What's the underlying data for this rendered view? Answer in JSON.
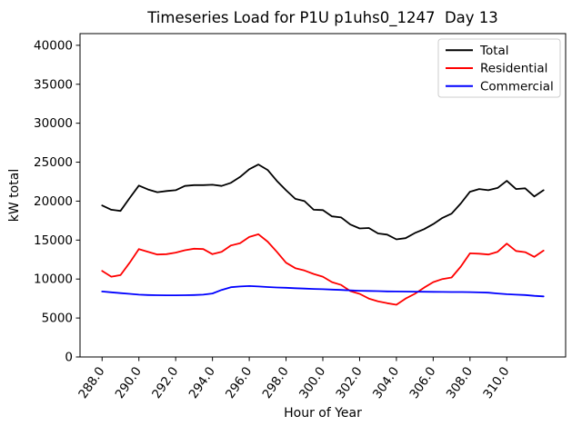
{
  "chart_data": {
    "type": "line",
    "title": "Timeseries Load for P1U p1uhs0_1247  Day 13",
    "xlabel": "Hour of Year",
    "ylabel": "kW total",
    "xlim": [
      286.8,
      313.2
    ],
    "ylim": [
      0,
      41500
    ],
    "grid": false,
    "x_tick_rotation_deg": -55,
    "x_ticks": [
      {
        "value": 288,
        "label": "288.0"
      },
      {
        "value": 290,
        "label": "290.0"
      },
      {
        "value": 292,
        "label": "292.0"
      },
      {
        "value": 294,
        "label": "294.0"
      },
      {
        "value": 296,
        "label": "296.0"
      },
      {
        "value": 298,
        "label": "298.0"
      },
      {
        "value": 300,
        "label": "300.0"
      },
      {
        "value": 302,
        "label": "302.0"
      },
      {
        "value": 304,
        "label": "304.0"
      },
      {
        "value": 306,
        "label": "306.0"
      },
      {
        "value": 308,
        "label": "308.0"
      },
      {
        "value": 310,
        "label": "310.0"
      }
    ],
    "y_ticks": [
      {
        "value": 0,
        "label": "0"
      },
      {
        "value": 5000,
        "label": "5000"
      },
      {
        "value": 10000,
        "label": "10000"
      },
      {
        "value": 15000,
        "label": "15000"
      },
      {
        "value": 20000,
        "label": "20000"
      },
      {
        "value": 25000,
        "label": "25000"
      },
      {
        "value": 30000,
        "label": "30000"
      },
      {
        "value": 35000,
        "label": "35000"
      },
      {
        "value": 40000,
        "label": "40000"
      }
    ],
    "x": [
      288,
      288.5,
      289,
      289.5,
      290,
      290.5,
      291,
      291.5,
      292,
      292.5,
      293,
      293.5,
      294,
      294.5,
      295,
      295.5,
      296,
      296.5,
      297,
      297.5,
      298,
      298.5,
      299,
      299.5,
      300,
      300.5,
      301,
      301.5,
      302,
      302.5,
      303,
      303.5,
      304,
      304.5,
      305,
      305.5,
      306,
      306.5,
      307,
      307.5,
      308,
      308.5,
      309,
      309.5,
      310,
      310.5,
      311,
      311.5,
      312
    ],
    "series": [
      {
        "name": "Total",
        "color": "#000000",
        "values": [
          19450,
          18900,
          18750,
          20400,
          22000,
          21500,
          21150,
          21300,
          21400,
          21950,
          22050,
          22050,
          22100,
          21950,
          22350,
          23100,
          24100,
          24700,
          24000,
          22600,
          21400,
          20300,
          20000,
          18900,
          18850,
          18050,
          17900,
          17000,
          16500,
          16550,
          15850,
          15700,
          15100,
          15250,
          15900,
          16400,
          17050,
          17850,
          18400,
          19700,
          21200,
          21550,
          21400,
          21700,
          22600,
          21550,
          21650,
          20600,
          21400
        ]
      },
      {
        "name": "Residential",
        "color": "#ff0000",
        "values": [
          11050,
          10300,
          10500,
          12100,
          13850,
          13500,
          13150,
          13200,
          13400,
          13700,
          13900,
          13850,
          13200,
          13500,
          14300,
          14600,
          15400,
          15750,
          14800,
          13500,
          12100,
          11400,
          11100,
          10650,
          10300,
          9600,
          9250,
          8450,
          8100,
          7500,
          7150,
          6900,
          6700,
          7500,
          8100,
          8900,
          9600,
          10000,
          10200,
          11600,
          13300,
          13250,
          13150,
          13500,
          14550,
          13600,
          13450,
          12850,
          13650
        ]
      },
      {
        "name": "Commercial",
        "color": "#0000ff",
        "values": [
          8400,
          8300,
          8200,
          8100,
          8000,
          7950,
          7930,
          7920,
          7920,
          7930,
          7950,
          8000,
          8150,
          8600,
          8950,
          9050,
          9100,
          9050,
          8980,
          8920,
          8880,
          8830,
          8780,
          8730,
          8700,
          8650,
          8600,
          8550,
          8500,
          8470,
          8450,
          8420,
          8400,
          8390,
          8380,
          8370,
          8360,
          8350,
          8340,
          8330,
          8320,
          8290,
          8250,
          8150,
          8050,
          8000,
          7950,
          7850,
          7780
        ]
      }
    ],
    "legend": {
      "position": "upper right",
      "entries": [
        "Total",
        "Residential",
        "Commercial"
      ]
    }
  }
}
